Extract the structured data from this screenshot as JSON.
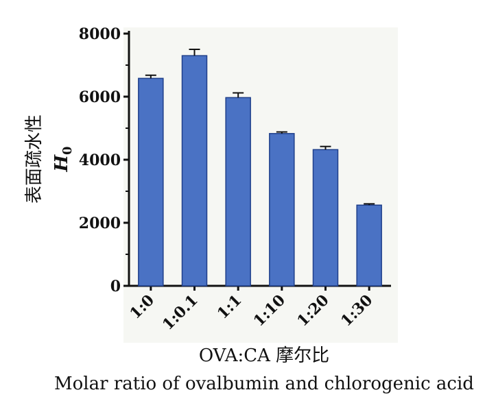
{
  "chart_data": {
    "type": "bar",
    "categories": [
      "1:0",
      "1:0.1",
      "1:1",
      "1:10",
      "1:20",
      "1:30"
    ],
    "values": [
      6580,
      7300,
      5970,
      4830,
      4320,
      2560
    ],
    "errors": [
      100,
      200,
      150,
      50,
      100,
      40
    ],
    "ylim": [
      0,
      8000
    ],
    "yticks": [
      "0",
      "2000",
      "4000",
      "6000",
      "8000"
    ],
    "ylabel_cn": "表面疏水性",
    "ylabel_symbol": "H",
    "ylabel_subscript": "0",
    "xlabel": "OVA:CA 摩尔比",
    "subtitle": "Molar ratio of ovalbumin and chlorogenic acid",
    "colors": {
      "bar": "#4a72c4",
      "bar_edge": "#1f3f8a",
      "background": "#f6f7f3"
    }
  }
}
